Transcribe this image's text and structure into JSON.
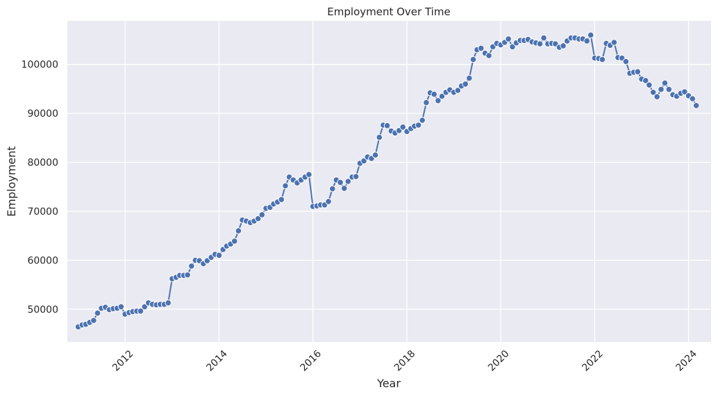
{
  "chart_data": {
    "type": "line",
    "title": "Employment Over Time",
    "xlabel": "Year",
    "ylabel": "Employment",
    "xlim": [
      "2010-10-09",
      "2024-06-24"
    ],
    "ylim": [
      43300,
      108900
    ],
    "x_ticks": [
      "2012-01-01",
      "2014-01-01",
      "2016-01-01",
      "2018-01-01",
      "2020-01-01",
      "2022-01-01",
      "2024-01-01"
    ],
    "x_tick_labels": [
      "2012",
      "2014",
      "2016",
      "2018",
      "2020",
      "2022",
      "2024"
    ],
    "y_ticks": [
      50000,
      60000,
      70000,
      80000,
      90000,
      100000
    ],
    "y_tick_labels": [
      "50000",
      "60000",
      "70000",
      "80000",
      "90000",
      "100000"
    ],
    "grid": true,
    "colors": {
      "line": "#4c72b0",
      "marker": "#4c72b0",
      "marker_edge": "#ffffff",
      "plot_background": "#eaeaf2",
      "grid": "#ffffff"
    },
    "series": [
      {
        "x": [
          "2011-01-01",
          "2011-02-01",
          "2011-03-01",
          "2011-04-01",
          "2011-05-01",
          "2011-06-01",
          "2011-07-01",
          "2011-08-01",
          "2011-09-01",
          "2011-10-01",
          "2011-11-01",
          "2011-12-01",
          "2012-01-01",
          "2012-02-01",
          "2012-03-01",
          "2012-04-01",
          "2012-05-01",
          "2012-06-01",
          "2012-07-01",
          "2012-08-01",
          "2012-09-01",
          "2012-10-01",
          "2012-11-01",
          "2012-12-01",
          "2013-01-01",
          "2013-02-01",
          "2013-03-01",
          "2013-04-01",
          "2013-05-01",
          "2013-06-01",
          "2013-07-01",
          "2013-08-01",
          "2013-09-01",
          "2013-10-01",
          "2013-11-01",
          "2013-12-01",
          "2014-01-01",
          "2014-02-01",
          "2014-03-01",
          "2014-04-01",
          "2014-05-01",
          "2014-06-01",
          "2014-07-01",
          "2014-08-01",
          "2014-09-01",
          "2014-10-01",
          "2014-11-01",
          "2014-12-01",
          "2015-01-01",
          "2015-02-01",
          "2015-03-01",
          "2015-04-01",
          "2015-05-01",
          "2015-06-01",
          "2015-07-01",
          "2015-08-01",
          "2015-09-01",
          "2015-10-01",
          "2015-11-01",
          "2015-12-01",
          "2016-01-01",
          "2016-02-01",
          "2016-03-01",
          "2016-04-01",
          "2016-05-01",
          "2016-06-01",
          "2016-07-01",
          "2016-08-01",
          "2016-09-01",
          "2016-10-01",
          "2016-11-01",
          "2016-12-01",
          "2017-01-01",
          "2017-02-01",
          "2017-03-01",
          "2017-04-01",
          "2017-05-01",
          "2017-06-01",
          "2017-07-01",
          "2017-08-01",
          "2017-09-01",
          "2017-10-01",
          "2017-11-01",
          "2017-12-01",
          "2018-01-01",
          "2018-02-01",
          "2018-03-01",
          "2018-04-01",
          "2018-05-01",
          "2018-06-01",
          "2018-07-01",
          "2018-08-01",
          "2018-09-01",
          "2018-10-01",
          "2018-11-01",
          "2018-12-01",
          "2019-01-01",
          "2019-02-01",
          "2019-03-01",
          "2019-04-01",
          "2019-05-01",
          "2019-06-01",
          "2019-07-01",
          "2019-08-01",
          "2019-09-01",
          "2019-10-01",
          "2019-11-01",
          "2019-12-01",
          "2020-01-01",
          "2020-02-01",
          "2020-03-01",
          "2020-04-01",
          "2020-05-01",
          "2020-06-01",
          "2020-07-01",
          "2020-08-01",
          "2020-09-01",
          "2020-10-01",
          "2020-11-01",
          "2020-12-01",
          "2021-01-01",
          "2021-02-01",
          "2021-03-01",
          "2021-04-01",
          "2021-05-01",
          "2021-06-01",
          "2021-07-01",
          "2021-08-01",
          "2021-09-01",
          "2021-10-01",
          "2021-11-01",
          "2021-12-01",
          "2022-01-01",
          "2022-02-01",
          "2022-03-01",
          "2022-04-01",
          "2022-05-01",
          "2022-06-01",
          "2022-07-01",
          "2022-08-01",
          "2022-09-01",
          "2022-10-01",
          "2022-11-01",
          "2022-12-01",
          "2023-01-01",
          "2023-02-01",
          "2023-03-01",
          "2023-04-01",
          "2023-05-01",
          "2023-06-01",
          "2023-07-01",
          "2023-08-01",
          "2023-09-01",
          "2023-10-01",
          "2023-11-01",
          "2023-12-01",
          "2024-01-01",
          "2024-02-01",
          "2024-03-01"
        ],
        "values": [
          46400,
          46800,
          46900,
          47300,
          47700,
          49200,
          50200,
          50400,
          49900,
          50100,
          50200,
          50500,
          49000,
          49300,
          49500,
          49600,
          49600,
          50500,
          51300,
          51000,
          50900,
          51000,
          51000,
          51300,
          56200,
          56500,
          56900,
          56900,
          57000,
          58800,
          60000,
          59900,
          59300,
          59900,
          60600,
          61200,
          61000,
          62200,
          62900,
          63300,
          63900,
          66000,
          68200,
          68000,
          67700,
          68000,
          68500,
          69300,
          70600,
          70800,
          71500,
          71900,
          72400,
          75200,
          77000,
          76400,
          75800,
          76400,
          77000,
          77500,
          71000,
          71100,
          71300,
          71300,
          72000,
          74600,
          76400,
          75900,
          74700,
          76100,
          77000,
          77100,
          79800,
          80300,
          81100,
          80800,
          81500,
          85100,
          87600,
          87500,
          86400,
          86000,
          86500,
          87200,
          86300,
          86900,
          87400,
          87600,
          88600,
          92200,
          94200,
          93900,
          92600,
          93500,
          94300,
          94800,
          94300,
          94700,
          95600,
          96000,
          97200,
          101000,
          103000,
          103300,
          102300,
          101800,
          103600,
          104300,
          104000,
          104500,
          105200,
          103600,
          104400,
          104900,
          104900,
          105100,
          104600,
          104400,
          104200,
          105400,
          104200,
          104300,
          104200,
          103500,
          103800,
          104800,
          105400,
          105400,
          105200,
          105200,
          104800,
          106000,
          101300,
          101200,
          101000,
          104300,
          103900,
          104500,
          101400,
          101300,
          100600,
          98200,
          98400,
          98500,
          97000,
          96700,
          95800,
          94300,
          93400,
          94900,
          96200,
          94900,
          93800,
          93500,
          94100,
          94400,
          93600,
          93000,
          91600
        ]
      }
    ]
  }
}
